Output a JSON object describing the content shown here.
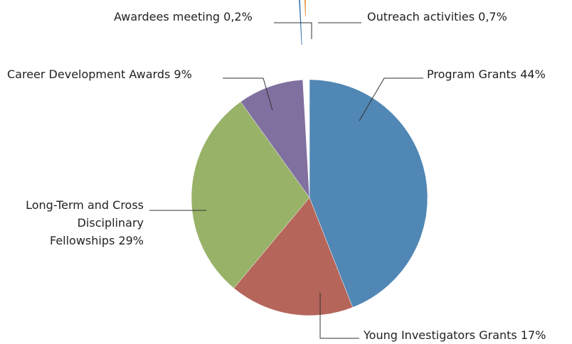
{
  "chart_data": {
    "type": "pie",
    "categories": [
      "Program Grants",
      "Young Investigators Grants",
      "Long-Term and Cross Disciplinary Fellowships",
      "Career Development Awards",
      "Awardees meeting",
      "Outreach activities"
    ],
    "values": [
      44,
      17,
      29,
      9,
      0.2,
      0.7
    ],
    "value_labels": [
      "44%",
      "17%",
      "29%",
      "9%",
      "0,2%",
      "0,7%"
    ],
    "colors": [
      "#5087b4",
      "#b5655a",
      "#98b268",
      "#8070a0",
      "#2f6fa9",
      "#e0913f"
    ]
  }
}
